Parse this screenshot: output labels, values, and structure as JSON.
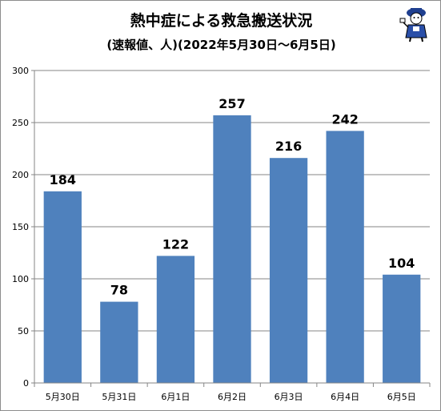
{
  "chart_data": {
    "type": "bar",
    "title": "熱中症による救急搬送状況",
    "subtitle": "(速報値、人)(2022年5月30日～6月5日)",
    "categories": [
      "5月30日",
      "5月31日",
      "6月1日",
      "6月2日",
      "6月3日",
      "6月4日",
      "6月5日"
    ],
    "values": [
      184,
      78,
      122,
      257,
      216,
      242,
      104
    ],
    "ylim": [
      0,
      300
    ],
    "yticks": [
      0,
      50,
      100,
      150,
      200,
      250,
      300
    ],
    "grid": true,
    "legend": "none",
    "bar_color": "#4f81bd",
    "grid_color": "#868686"
  },
  "decor": {
    "mascot_icon": "mascot-figure-icon"
  }
}
